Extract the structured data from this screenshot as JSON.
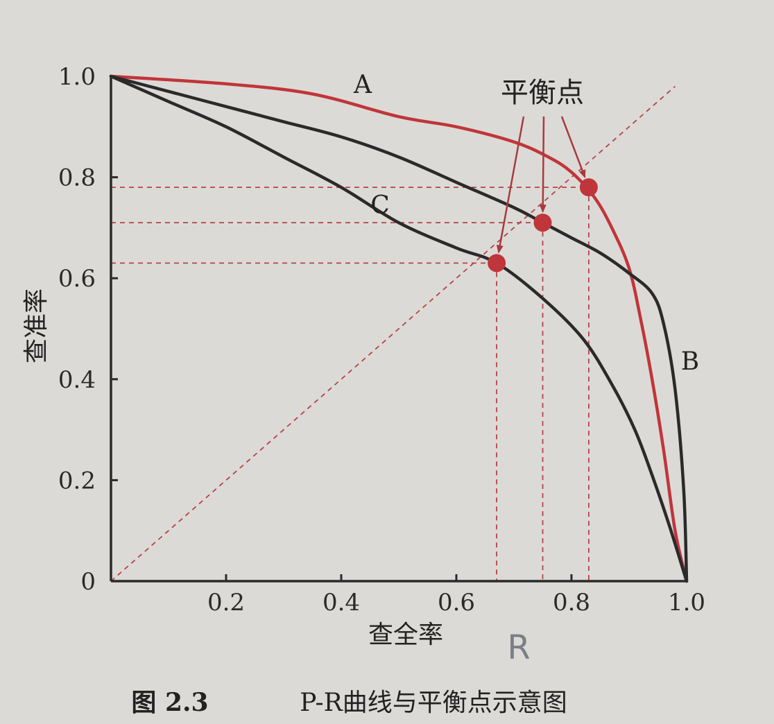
{
  "chart_data": {
    "type": "line",
    "xlabel": "查全率",
    "ylabel": "查准率",
    "xlim": [
      0,
      1.0
    ],
    "ylim": [
      0,
      1.0
    ],
    "x_ticks": [
      "0.2",
      "0.4",
      "0.6",
      "0.8",
      "1.0"
    ],
    "y_ticks": [
      "0",
      "0.2",
      "0.4",
      "0.6",
      "0.8",
      "1.0"
    ],
    "grid": false,
    "series": [
      {
        "name": "A",
        "color": "#c0353a",
        "x": [
          0.0,
          0.2,
          0.35,
          0.5,
          0.6,
          0.7,
          0.76,
          0.8,
          0.84,
          0.87,
          0.9,
          0.92,
          0.94,
          0.96,
          0.98,
          1.0
        ],
        "y": [
          1.0,
          0.985,
          0.965,
          0.92,
          0.9,
          0.87,
          0.84,
          0.81,
          0.76,
          0.7,
          0.62,
          0.52,
          0.4,
          0.26,
          0.1,
          0.0
        ]
      },
      {
        "name": "B",
        "color": "#2a2a2a",
        "x": [
          0.0,
          0.1,
          0.2,
          0.3,
          0.4,
          0.5,
          0.6,
          0.7,
          0.75,
          0.8,
          0.85,
          0.9,
          0.94,
          0.96,
          0.98,
          0.995,
          1.0
        ],
        "y": [
          1.0,
          0.97,
          0.94,
          0.91,
          0.88,
          0.84,
          0.79,
          0.74,
          0.71,
          0.68,
          0.65,
          0.61,
          0.57,
          0.51,
          0.38,
          0.18,
          0.0
        ]
      },
      {
        "name": "C",
        "color": "#2a2a2a",
        "x": [
          0.0,
          0.1,
          0.2,
          0.3,
          0.4,
          0.5,
          0.6,
          0.67,
          0.75,
          0.82,
          0.87,
          0.91,
          0.94,
          0.97,
          1.0
        ],
        "y": [
          1.0,
          0.95,
          0.9,
          0.84,
          0.78,
          0.71,
          0.66,
          0.63,
          0.56,
          0.48,
          0.39,
          0.3,
          0.21,
          0.11,
          0.0
        ]
      }
    ],
    "diagonal": {
      "x": [
        0,
        0.98
      ],
      "y": [
        0,
        0.98
      ]
    },
    "break_even_points": [
      {
        "x": 0.67,
        "y": 0.63
      },
      {
        "x": 0.75,
        "y": 0.71
      },
      {
        "x": 0.83,
        "y": 0.78
      }
    ],
    "annotation": "平衡点",
    "curve_labels": {
      "A": "A",
      "B": "B",
      "C": "C"
    },
    "handwritten_mark": "R"
  },
  "caption": {
    "number": "图 2.3",
    "text": "P-R曲线与平衡点示意图"
  }
}
